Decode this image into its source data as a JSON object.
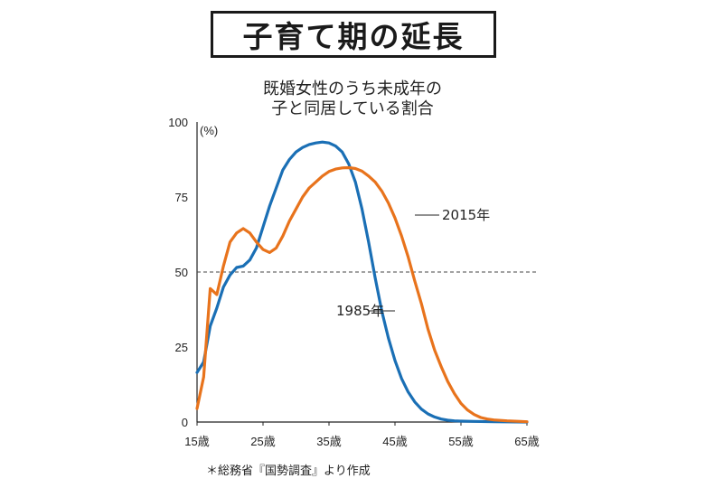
{
  "title": "子育て期の延長",
  "subtitle_lines": [
    "既婚女性のうち未成年の",
    "子と同居している割合"
  ],
  "unit_label": "(%)",
  "source_note": "＊総務省『国勢調査』より作成",
  "colors": {
    "1985年": "#1a6fb5",
    "2015年": "#e8731c",
    "axis": "#222222"
  },
  "chart_data": {
    "type": "line",
    "title": "既婚女性のうち未成年の子と同居している割合",
    "xlabel": "",
    "ylabel": "(%)",
    "xlim": [
      15,
      65
    ],
    "ylim": [
      0,
      100
    ],
    "x_ticks": [
      15,
      25,
      35,
      45,
      55,
      65
    ],
    "x_tick_labels": [
      "15歳",
      "25歳",
      "35歳",
      "45歳",
      "55歳",
      "65歳"
    ],
    "y_ticks": [
      0,
      25,
      50,
      75,
      100
    ],
    "y_tick_labels": [
      "0",
      "25",
      "50",
      "75",
      "100"
    ],
    "reference_line": {
      "y": 50,
      "style": "dashed"
    },
    "grid": false,
    "series": [
      {
        "name": "1985年",
        "points": [
          [
            15,
            16.5
          ],
          [
            16,
            20
          ],
          [
            17,
            32
          ],
          [
            18,
            38
          ],
          [
            19,
            45
          ],
          [
            20,
            49
          ],
          [
            21,
            51.5
          ],
          [
            22,
            52
          ],
          [
            23,
            54
          ],
          [
            24,
            58
          ],
          [
            25,
            65
          ],
          [
            26,
            72
          ],
          [
            27,
            78
          ],
          [
            28,
            84
          ],
          [
            29,
            87.5
          ],
          [
            30,
            90
          ],
          [
            31,
            91.5
          ],
          [
            32,
            92.5
          ],
          [
            33,
            93
          ],
          [
            34,
            93.3
          ],
          [
            35,
            93
          ],
          [
            36,
            92
          ],
          [
            37,
            90
          ],
          [
            38,
            86
          ],
          [
            39,
            80
          ],
          [
            40,
            71
          ],
          [
            41,
            60
          ],
          [
            42,
            48
          ],
          [
            43,
            37
          ],
          [
            44,
            28
          ],
          [
            45,
            20.5
          ],
          [
            46,
            14.5
          ],
          [
            47,
            10
          ],
          [
            48,
            6.7
          ],
          [
            49,
            4.3
          ],
          [
            50,
            2.7
          ],
          [
            51,
            1.7
          ],
          [
            52,
            1
          ],
          [
            53,
            0.6
          ],
          [
            54,
            0.4
          ],
          [
            55,
            0.3
          ],
          [
            57,
            0.2
          ],
          [
            60,
            0.1
          ],
          [
            65,
            0
          ]
        ]
      },
      {
        "name": "2015年",
        "points": [
          [
            15,
            4.5
          ],
          [
            16,
            15
          ],
          [
            17,
            44.5
          ],
          [
            18,
            42.5
          ],
          [
            19,
            52
          ],
          [
            20,
            60
          ],
          [
            21,
            63
          ],
          [
            22,
            64.5
          ],
          [
            23,
            63
          ],
          [
            24,
            60
          ],
          [
            25,
            57.5
          ],
          [
            26,
            56.5
          ],
          [
            27,
            58
          ],
          [
            28,
            62
          ],
          [
            29,
            67
          ],
          [
            30,
            71
          ],
          [
            31,
            75
          ],
          [
            32,
            78
          ],
          [
            33,
            80
          ],
          [
            34,
            82
          ],
          [
            35,
            83.5
          ],
          [
            36,
            84.3
          ],
          [
            37,
            84.7
          ],
          [
            38,
            84.8
          ],
          [
            39,
            84.5
          ],
          [
            40,
            83.6
          ],
          [
            41,
            82
          ],
          [
            42,
            80
          ],
          [
            43,
            77
          ],
          [
            44,
            73
          ],
          [
            45,
            68
          ],
          [
            46,
            62
          ],
          [
            47,
            55
          ],
          [
            48,
            47
          ],
          [
            49,
            39.5
          ],
          [
            50,
            31
          ],
          [
            51,
            24
          ],
          [
            52,
            18.5
          ],
          [
            53,
            13.5
          ],
          [
            54,
            9.5
          ],
          [
            55,
            6.2
          ],
          [
            56,
            4
          ],
          [
            57,
            2.5
          ],
          [
            58,
            1.5
          ],
          [
            59,
            1
          ],
          [
            60,
            0.7
          ],
          [
            62,
            0.4
          ],
          [
            64,
            0.2
          ],
          [
            65,
            0.1
          ]
        ]
      }
    ]
  }
}
